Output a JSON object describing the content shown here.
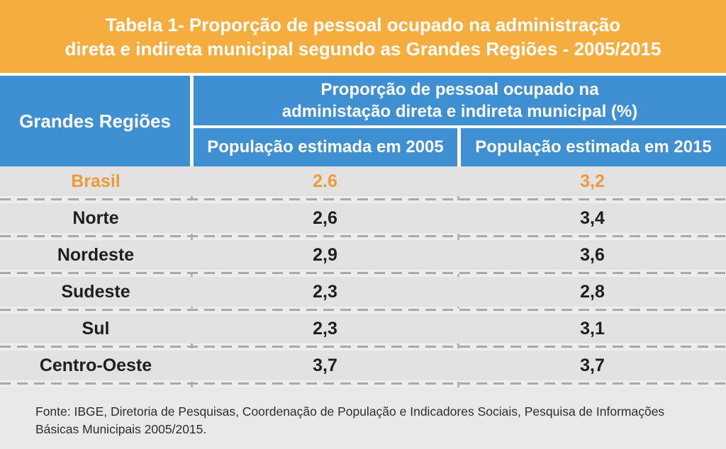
{
  "colors": {
    "band_orange": "#F5AE3E",
    "header_blue": "#3F8FD3",
    "highlight_orange": "#EB9C39",
    "body_background": "#E9E9E9",
    "row_background": "#E2E2E2",
    "dash_gray": "#A9A9A9",
    "text_dark": "#1F1F1F",
    "white": "#FFFFFF"
  },
  "title": {
    "line1": "Tabela 1- Proporção de pessoal ocupado na administração",
    "line2": "direta e indireta municipal segundo as Grandes Regiões - 2005/2015"
  },
  "table": {
    "header": {
      "region_col": "Grandes Regiões",
      "span_line1": "Proporção de pessoal ocupado na",
      "span_line2": "administação direta e indireta municipal (%)",
      "col_2005": "População estimada em 2005",
      "col_2015": "População estimada em 2015"
    },
    "rows": [
      {
        "region": "Brasil",
        "pop_2005": "2.6",
        "pop_2015": "3,2",
        "highlighted": true
      },
      {
        "region": "Norte",
        "pop_2005": "2,6",
        "pop_2015": "3,4",
        "highlighted": false
      },
      {
        "region": "Nordeste",
        "pop_2005": "2,9",
        "pop_2015": "3,6",
        "highlighted": false
      },
      {
        "region": "Sudeste",
        "pop_2005": "2,3",
        "pop_2015": "2,8",
        "highlighted": false
      },
      {
        "region": "Sul",
        "pop_2005": "2,3",
        "pop_2015": "3,1",
        "highlighted": false
      },
      {
        "region": "Centro-Oeste",
        "pop_2005": "3,7",
        "pop_2015": "3,7",
        "highlighted": false
      }
    ]
  },
  "source": {
    "line1": "Fonte: IBGE, Diretoria de Pesquisas, Coordenação de População e Indicadores Sociais, Pesquisa de Informações",
    "line2": "Básicas Municipais 2005/2015."
  },
  "chart_data": {
    "type": "table",
    "title": "Tabela 1- Proporção de pessoal ocupado na administração direta e indireta municipal segundo as Grandes Regiões - 2005/2015",
    "columns": [
      "Grandes Regiões",
      "População estimada em 2005",
      "População estimada em 2015"
    ],
    "unit": "%",
    "rows": [
      [
        "Brasil",
        2.6,
        3.2
      ],
      [
        "Norte",
        2.6,
        3.4
      ],
      [
        "Nordeste",
        2.9,
        3.6
      ],
      [
        "Sudeste",
        2.3,
        2.8
      ],
      [
        "Sul",
        2.3,
        3.1
      ],
      [
        "Centro-Oeste",
        3.7,
        3.7
      ]
    ],
    "source": "Fonte: IBGE, Diretoria de Pesquisas, Coordenação de População e Indicadores Sociais, Pesquisa de Informações Básicas Municipais 2005/2015."
  }
}
